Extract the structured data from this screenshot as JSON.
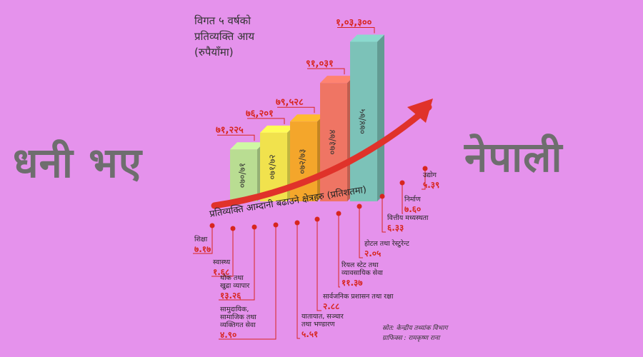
{
  "title_lines": [
    "विगत ५ वर्षको",
    "प्रतिव्यक्ति आय",
    "(रुपैयाँमा)"
  ],
  "left_word": "धनी भए",
  "right_word": "नेपाली",
  "sectors_title": "प्रतिव्यक्ति आम्दानी बढाउने क्षेत्रहरु (प्रतिशतमा)",
  "source": "स्रोत: केन्द्रीय तथ्यांक विभाग",
  "graphics": "ग्राफिक्स : रामकृष्ण राना",
  "colors": {
    "background": "#e592ec",
    "value": "#d7261e",
    "bigword": "#6e6e6e",
    "arrow": "#e0322a"
  },
  "chart_data": [
    {
      "type": "bar",
      "categories": [
        "०७०/७१",
        "०७१/७२",
        "०७२/७३",
        "०७३/७४",
        "०७४/७५"
      ],
      "values": [
        71225,
        76201,
        79528,
        91031,
        103300
      ],
      "value_labels": [
        "७१,२२५",
        "७६,२०१",
        "७९,५२८",
        "९१,०३१",
        "१,०३,३००"
      ],
      "colors": [
        "#b9dd92",
        "#f1e24d",
        "#f4a62b",
        "#ef7564",
        "#7cc2b8"
      ]
    },
    {
      "type": "bar",
      "title": "प्रतिव्यक्ति आम्दानी बढाउने क्षेत्रहरु (प्रतिशतमा)",
      "categories": [
        "शिक्षा",
        "स्वास्थ्य",
        "थोक तथा खुद्रा व्यापार",
        "सामुदायिक, सामाजिक तथा व्यक्तिगत सेवा",
        "यातायात, सञ्चार तथा भण्डारण",
        "सार्वजनिक प्रशासन तथा रक्षा",
        "रियल स्टेट तथा व्यावसायिक सेवा",
        "होटल तथा रेस्टुरेन्ट",
        "वित्तीय मध्यस्थता",
        "निर्माण",
        "उद्योग"
      ],
      "values": [
        7.17,
        1.68,
        13.26,
        4.9,
        5.51,
        2.88,
        11.37,
        2.05,
        6.33,
        7.6,
        5.39
      ],
      "value_labels": [
        "७.१७",
        "१.६८",
        "१३.२६",
        "४.९०",
        "५.५१",
        "२.८८",
        "११.३७",
        "२.०५",
        "६.३३",
        "७.६०",
        "५.३९"
      ]
    }
  ]
}
